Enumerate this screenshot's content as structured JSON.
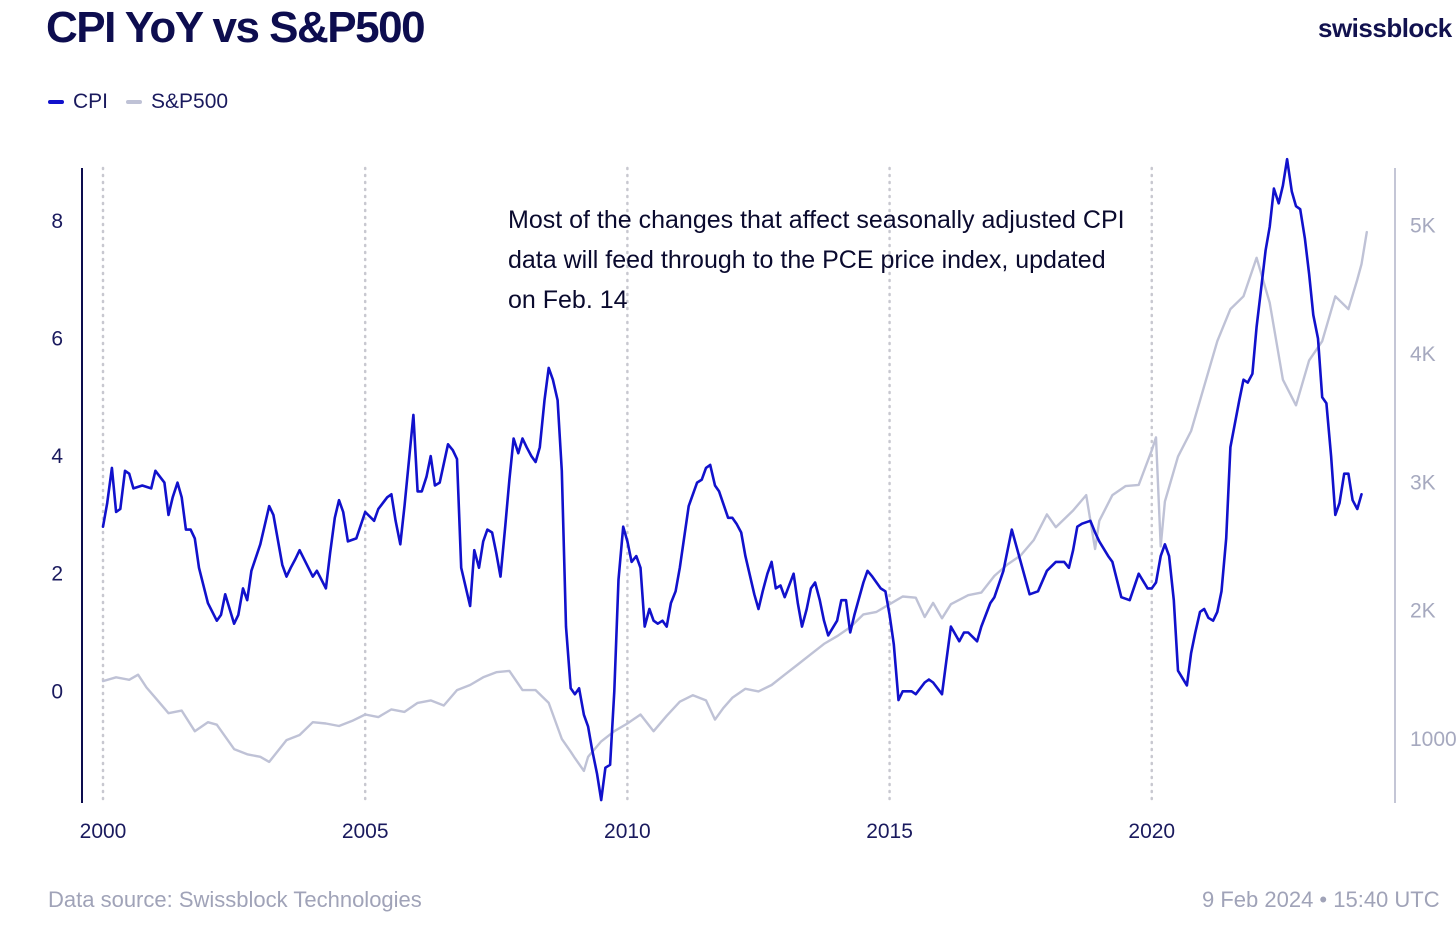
{
  "header": {
    "title": "CPI YoY vs S&P500",
    "brand": "swissblock"
  },
  "legend": [
    {
      "label": "CPI",
      "color": "#1111cc"
    },
    {
      "label": "S&P500",
      "color": "#bfc2d6"
    }
  ],
  "footer": {
    "source": "Data source: Swissblock Technologies",
    "timestamp": "9 Feb 2024 • 15:40 UTC"
  },
  "colors": {
    "cpi": "#1111cc",
    "sp500": "#bfc2d6",
    "axis_left": "#0d0d4f",
    "axis_right": "#c4c6d6",
    "gridline": "#c8c8d0"
  },
  "chart_data": {
    "type": "line",
    "title": "CPI YoY vs S&P500",
    "xlabel": "",
    "ylabel": "",
    "x_ticks": [
      "2000",
      "2005",
      "2010",
      "2015",
      "2020"
    ],
    "x_range": [
      2000,
      2024.2
    ],
    "y_left_ticks": [
      "0",
      "2",
      "4",
      "6",
      "8"
    ],
    "y_left_range": [
      -1.9,
      8.9
    ],
    "y_right_ticks": [
      "1000",
      "2K",
      "3K",
      "4K",
      "5K"
    ],
    "y_right_range": [
      500,
      5450
    ],
    "vertical_gridlines": [
      2000,
      2005,
      2010,
      2015,
      2020
    ],
    "grid": "vertical dotted",
    "annotation": "Most of the changes that affect seasonally adjusted CPI data will feed through to the PCE price index, updated on Feb. 14",
    "series": [
      {
        "name": "CPI",
        "axis": "left",
        "x": [
          2000.0,
          2000.08,
          2000.17,
          2000.25,
          2000.33,
          2000.42,
          2000.5,
          2000.58,
          2000.75,
          2000.92,
          2001.0,
          2001.17,
          2001.25,
          2001.33,
          2001.42,
          2001.5,
          2001.58,
          2001.67,
          2001.75,
          2001.83,
          2002.0,
          2002.17,
          2002.25,
          2002.33,
          2002.5,
          2002.58,
          2002.67,
          2002.75,
          2002.83,
          2003.0,
          2003.17,
          2003.25,
          2003.42,
          2003.5,
          2003.58,
          2003.67,
          2003.75,
          2004.0,
          2004.08,
          2004.25,
          2004.33,
          2004.42,
          2004.5,
          2004.58,
          2004.67,
          2004.83,
          2005.0,
          2005.17,
          2005.25,
          2005.42,
          2005.5,
          2005.58,
          2005.67,
          2005.75,
          2005.92,
          2006.0,
          2006.08,
          2006.17,
          2006.25,
          2006.33,
          2006.42,
          2006.58,
          2006.67,
          2006.75,
          2006.83,
          2007.0,
          2007.08,
          2007.17,
          2007.25,
          2007.33,
          2007.42,
          2007.5,
          2007.58,
          2007.67,
          2007.75,
          2007.83,
          2007.92,
          2008.0,
          2008.08,
          2008.17,
          2008.25,
          2008.33,
          2008.42,
          2008.5,
          2008.58,
          2008.67,
          2008.75,
          2008.83,
          2008.92,
          2009.0,
          2009.08,
          2009.17,
          2009.25,
          2009.33,
          2009.42,
          2009.5,
          2009.58,
          2009.67,
          2009.75,
          2009.83,
          2009.92,
          2010.0,
          2010.08,
          2010.17,
          2010.25,
          2010.33,
          2010.42,
          2010.5,
          2010.58,
          2010.67,
          2010.75,
          2010.83,
          2010.92,
          2011.0,
          2011.17,
          2011.33,
          2011.42,
          2011.5,
          2011.58,
          2011.67,
          2011.75,
          2011.92,
          2012.0,
          2012.08,
          2012.17,
          2012.25,
          2012.42,
          2012.5,
          2012.58,
          2012.67,
          2012.75,
          2012.83,
          2012.92,
          2013.0,
          2013.17,
          2013.25,
          2013.33,
          2013.42,
          2013.5,
          2013.58,
          2013.67,
          2013.75,
          2013.83,
          2014.0,
          2014.08,
          2014.17,
          2014.25,
          2014.33,
          2014.5,
          2014.58,
          2014.67,
          2014.83,
          2014.92,
          2015.0,
          2015.08,
          2015.17,
          2015.25,
          2015.42,
          2015.5,
          2015.67,
          2015.75,
          2015.83,
          2016.0,
          2016.08,
          2016.17,
          2016.33,
          2016.42,
          2016.5,
          2016.67,
          2016.75,
          2016.92,
          2017.0,
          2017.17,
          2017.33,
          2017.5,
          2017.67,
          2017.83,
          2018.0,
          2018.17,
          2018.33,
          2018.42,
          2018.5,
          2018.58,
          2018.67,
          2018.83,
          2018.92,
          2019.0,
          2019.17,
          2019.25,
          2019.42,
          2019.58,
          2019.75,
          2019.92,
          2020.0,
          2020.08,
          2020.17,
          2020.25,
          2020.33,
          2020.42,
          2020.5,
          2020.67,
          2020.75,
          2020.83,
          2020.92,
          2021.0,
          2021.08,
          2021.17,
          2021.25,
          2021.33,
          2021.42,
          2021.5,
          2021.67,
          2021.75,
          2021.83,
          2021.92,
          2022.0,
          2022.08,
          2022.17,
          2022.25,
          2022.33,
          2022.42,
          2022.5,
          2022.58,
          2022.67,
          2022.75,
          2022.83,
          2022.92,
          2023.0,
          2023.08,
          2023.17,
          2023.25,
          2023.33,
          2023.42,
          2023.5,
          2023.58,
          2023.67,
          2023.75,
          2023.83,
          2023.92,
          2024.0
        ],
        "values": [
          2.8,
          3.2,
          3.8,
          3.05,
          3.1,
          3.75,
          3.7,
          3.45,
          3.5,
          3.45,
          3.75,
          3.55,
          3.0,
          3.3,
          3.55,
          3.3,
          2.75,
          2.75,
          2.6,
          2.1,
          1.5,
          1.2,
          1.3,
          1.65,
          1.15,
          1.3,
          1.75,
          1.55,
          2.05,
          2.5,
          3.15,
          3.0,
          2.15,
          1.95,
          2.1,
          2.25,
          2.4,
          1.95,
          2.05,
          1.75,
          2.35,
          2.95,
          3.25,
          3.05,
          2.55,
          2.6,
          3.05,
          2.9,
          3.1,
          3.3,
          3.35,
          2.9,
          2.5,
          3.15,
          4.7,
          3.4,
          3.4,
          3.65,
          4.0,
          3.5,
          3.55,
          4.2,
          4.1,
          3.95,
          2.1,
          1.45,
          2.4,
          2.1,
          2.55,
          2.75,
          2.7,
          2.35,
          1.95,
          2.8,
          3.6,
          4.3,
          4.05,
          4.3,
          4.15,
          4.0,
          3.9,
          4.15,
          4.95,
          5.5,
          5.3,
          4.95,
          3.75,
          1.1,
          0.05,
          -0.05,
          0.05,
          -0.4,
          -0.6,
          -1.0,
          -1.4,
          -1.85,
          -1.3,
          -1.25,
          0.0,
          1.9,
          2.8,
          2.55,
          2.2,
          2.3,
          2.1,
          1.1,
          1.4,
          1.2,
          1.15,
          1.2,
          1.1,
          1.5,
          1.7,
          2.1,
          3.15,
          3.55,
          3.6,
          3.8,
          3.85,
          3.5,
          3.4,
          2.95,
          2.95,
          2.85,
          2.7,
          2.3,
          1.65,
          1.4,
          1.7,
          2.0,
          2.2,
          1.75,
          1.8,
          1.6,
          2.0,
          1.5,
          1.1,
          1.4,
          1.75,
          1.85,
          1.55,
          1.2,
          0.95,
          1.2,
          1.55,
          1.55,
          1.0,
          1.3,
          1.85,
          2.05,
          1.95,
          1.75,
          1.7,
          1.3,
          0.8,
          -0.15,
          0.0,
          0.0,
          -0.05,
          0.15,
          0.2,
          0.15,
          -0.05,
          0.5,
          1.1,
          0.85,
          1.0,
          1.0,
          0.85,
          1.1,
          1.5,
          1.6,
          2.05,
          2.75,
          2.2,
          1.65,
          1.7,
          2.05,
          2.2,
          2.2,
          2.1,
          2.4,
          2.8,
          2.85,
          2.9,
          2.7,
          2.55,
          2.3,
          2.2,
          1.6,
          1.55,
          2.0,
          1.75,
          1.75,
          1.85,
          2.3,
          2.5,
          2.3,
          1.55,
          0.35,
          0.1,
          0.65,
          1.0,
          1.35,
          1.4,
          1.25,
          1.2,
          1.35,
          1.7,
          2.6,
          4.15,
          4.95,
          5.3,
          5.25,
          5.4,
          6.2,
          6.8,
          7.5,
          7.9,
          8.55,
          8.3,
          8.6,
          9.05,
          8.5,
          8.25,
          8.2,
          7.7,
          7.1,
          6.4,
          6.0,
          5.0,
          4.9,
          4.0,
          3.0,
          3.2,
          3.7,
          3.7,
          3.25,
          3.1,
          3.35
        ]
      },
      {
        "name": "S&P500",
        "axis": "right",
        "x": [
          2000.0,
          2000.25,
          2000.5,
          2000.67,
          2000.83,
          2001.0,
          2001.25,
          2001.5,
          2001.75,
          2002.0,
          2002.17,
          2002.5,
          2002.75,
          2003.0,
          2003.17,
          2003.5,
          2003.75,
          2004.0,
          2004.25,
          2004.5,
          2004.75,
          2005.0,
          2005.25,
          2005.5,
          2005.75,
          2006.0,
          2006.25,
          2006.5,
          2006.75,
          2007.0,
          2007.25,
          2007.5,
          2007.75,
          2008.0,
          2008.25,
          2008.5,
          2008.75,
          2008.92,
          2009.0,
          2009.17,
          2009.25,
          2009.5,
          2009.75,
          2010.0,
          2010.25,
          2010.5,
          2010.75,
          2011.0,
          2011.25,
          2011.5,
          2011.67,
          2011.83,
          2012.0,
          2012.25,
          2012.5,
          2012.75,
          2013.0,
          2013.25,
          2013.5,
          2013.75,
          2014.0,
          2014.25,
          2014.5,
          2014.75,
          2015.0,
          2015.25,
          2015.5,
          2015.67,
          2015.83,
          2016.0,
          2016.17,
          2016.5,
          2016.75,
          2017.0,
          2017.25,
          2017.5,
          2017.75,
          2018.0,
          2018.17,
          2018.5,
          2018.75,
          2018.92,
          2019.0,
          2019.25,
          2019.5,
          2019.75,
          2020.0,
          2020.08,
          2020.17,
          2020.25,
          2020.5,
          2020.75,
          2021.0,
          2021.25,
          2021.5,
          2021.75,
          2022.0,
          2022.25,
          2022.5,
          2022.75,
          2023.0,
          2023.25,
          2023.5,
          2023.75,
          2023.92,
          2024.0,
          2024.1
        ],
        "values": [
          1450,
          1480,
          1460,
          1500,
          1400,
          1320,
          1200,
          1220,
          1060,
          1130,
          1110,
          920,
          880,
          860,
          820,
          990,
          1030,
          1130,
          1120,
          1100,
          1140,
          1190,
          1170,
          1230,
          1210,
          1280,
          1300,
          1260,
          1380,
          1420,
          1480,
          1520,
          1530,
          1380,
          1380,
          1280,
          1000,
          900,
          850,
          750,
          860,
          980,
          1060,
          1120,
          1190,
          1060,
          1180,
          1290,
          1340,
          1300,
          1150,
          1240,
          1320,
          1390,
          1370,
          1420,
          1500,
          1580,
          1660,
          1740,
          1800,
          1870,
          1970,
          1990,
          2050,
          2110,
          2100,
          1950,
          2060,
          1940,
          2050,
          2120,
          2140,
          2270,
          2360,
          2430,
          2550,
          2750,
          2650,
          2780,
          2900,
          2480,
          2700,
          2900,
          2970,
          2980,
          3250,
          3350,
          2500,
          2850,
          3200,
          3400,
          3750,
          4100,
          4350,
          4450,
          4750,
          4400,
          3800,
          3600,
          3950,
          4100,
          4450,
          4350,
          4580,
          4700,
          4950
        ]
      }
    ]
  }
}
